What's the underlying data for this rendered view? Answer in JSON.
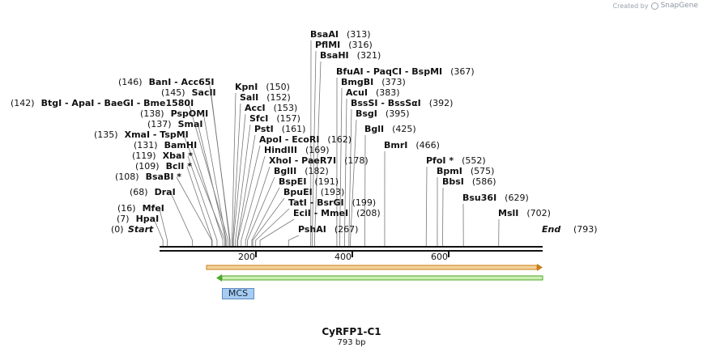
{
  "credit": {
    "prefix": "Created by",
    "brand": "SnapGene"
  },
  "sequence": {
    "name": "CyRFP1-C1",
    "length_label": "793 bp",
    "length_bp": 793
  },
  "ends": {
    "start_label": "Start",
    "start_pos": "(0)",
    "end_label": "End",
    "end_pos": "(793)"
  },
  "scale_ticks": [
    "200",
    "400",
    "600"
  ],
  "features": [
    {
      "name": "MCS",
      "color": "#a7ccf2"
    },
    {
      "strand": "forward",
      "color": "#e8a24a"
    },
    {
      "strand": "reverse",
      "color": "#7ec850"
    }
  ],
  "sites": [
    {
      "text": "BsaAI",
      "pos": "(313)"
    },
    {
      "text": "PflMI",
      "pos": "(316)"
    },
    {
      "text": "BsaHI",
      "pos": "(321)"
    },
    {
      "text": "BfuAI  - PaqCI  - BspMI",
      "pos": "(367)"
    },
    {
      "text": "BmgBI",
      "pos": "(373)"
    },
    {
      "text": "AcuI",
      "pos": "(383)"
    },
    {
      "text": "BssSI  - BssSαI",
      "pos": "(392)"
    },
    {
      "text": "BsgI",
      "pos": "(395)"
    },
    {
      "text": "BglI",
      "pos": "(425)"
    },
    {
      "text": "BmrI",
      "pos": "(466)"
    },
    {
      "text": "PfoI *",
      "pos": "(552)"
    },
    {
      "text": "BpmI",
      "pos": "(575)"
    },
    {
      "text": "BbsI",
      "pos": "(586)"
    },
    {
      "text": "Bsu36I",
      "pos": "(629)"
    },
    {
      "text": "MslI",
      "pos": "(702)"
    },
    {
      "text": "KpnI",
      "pos": "(150)"
    },
    {
      "text": "SalI",
      "pos": "(152)"
    },
    {
      "text": "AccI",
      "pos": "(153)"
    },
    {
      "text": "SfcI",
      "pos": "(157)"
    },
    {
      "text": "PstI",
      "pos": "(161)"
    },
    {
      "text": "ApoI  - EcoRI",
      "pos": "(162)"
    },
    {
      "text": "HindIII",
      "pos": "(169)"
    },
    {
      "text": "XhoI  - PaeR7I",
      "pos": "(178)"
    },
    {
      "text": "BglII",
      "pos": "(182)"
    },
    {
      "text": "BspEI",
      "pos": "(191)"
    },
    {
      "text": "BpuEI",
      "pos": "(193)"
    },
    {
      "text": "TatI  - BsrGI",
      "pos": "(199)"
    },
    {
      "text": "EciI  - MmeI",
      "pos": "(208)"
    },
    {
      "text": "PshAI",
      "pos": "(267)"
    },
    {
      "text": "BanI  - Acc65I",
      "pos": "(146)"
    },
    {
      "text": "SacII",
      "pos": "(145)"
    },
    {
      "text": "BtgI  - ApaI  - BaeGI  - Bme1580I",
      "pos": "(142)"
    },
    {
      "text": "PspOMI",
      "pos": "(138)"
    },
    {
      "text": "SmaI",
      "pos": "(137)"
    },
    {
      "text": "XmaI  - TspMI",
      "pos": "(135)"
    },
    {
      "text": "BamHI",
      "pos": "(131)"
    },
    {
      "text": "XbaI *",
      "pos": "(119)"
    },
    {
      "text": "BclI *",
      "pos": "(109)"
    },
    {
      "text": "BsaBI *",
      "pos": "(108)"
    },
    {
      "text": "DraI",
      "pos": "(68)"
    },
    {
      "text": "MfeI",
      "pos": "(16)"
    },
    {
      "text": "HpaI",
      "pos": "(7)"
    }
  ]
}
